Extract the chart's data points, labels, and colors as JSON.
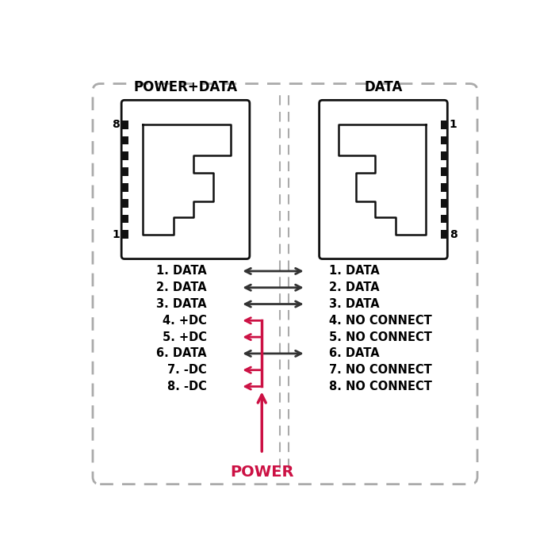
{
  "bg_color": "#ffffff",
  "outer_border_color": "#aaaaaa",
  "connector_border_color": "#111111",
  "pin_color": "#111111",
  "arrow_data_color": "#333333",
  "power_line_color": "#cc1144",
  "title_left": "POWER+DATA",
  "title_right": "DATA",
  "title_fontsize": 12,
  "label_fontsize": 10.5,
  "power_label": "POWER",
  "power_label_color": "#cc1144",
  "rows": [
    {
      "left": "1. DATA",
      "right": "1. DATA",
      "arrow": "double"
    },
    {
      "left": "2. DATA",
      "right": "2. DATA",
      "arrow": "double"
    },
    {
      "left": "3. DATA",
      "right": "3. DATA",
      "arrow": "double"
    },
    {
      "left": "4. +DC",
      "right": "4. NO CONNECT",
      "arrow": "left"
    },
    {
      "left": "5. +DC",
      "right": "5. NO CONNECT",
      "arrow": "left"
    },
    {
      "left": "6. DATA",
      "right": "6. DATA",
      "arrow": "double"
    },
    {
      "left": "7. -DC",
      "right": "7. NO CONNECT",
      "arrow": "left"
    },
    {
      "left": "8. -DC",
      "right": "8. NO CONNECT",
      "arrow": "left"
    }
  ]
}
